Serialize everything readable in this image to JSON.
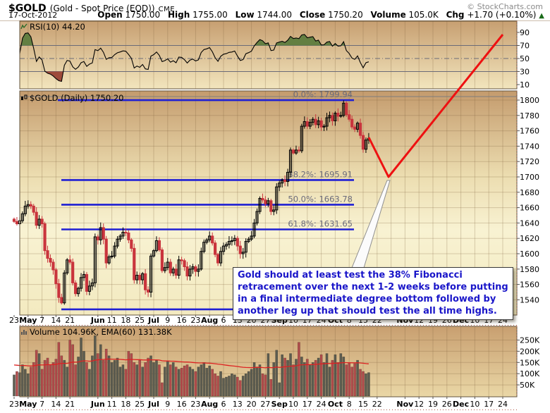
{
  "header": {
    "symbol": "$GOLD",
    "name": "(Gold - Spot Price (EOD))",
    "exchange": "CME",
    "copyright": "© StockCharts.com",
    "date": "17-Oct-2012",
    "quote": [
      {
        "label": "Open",
        "value": "1750.00"
      },
      {
        "label": "High",
        "value": "1755.00"
      },
      {
        "label": "Low",
        "value": "1744.00"
      },
      {
        "label": "Close",
        "value": "1750.20"
      },
      {
        "label": "Volume",
        "value": "105.0K"
      },
      {
        "label": "Chg",
        "value": "+1.70 (+0.10%)"
      }
    ],
    "chg_direction": "up"
  },
  "panels": {
    "rsi": {
      "label": "RSI(10) 44.20",
      "scale_values": [
        90,
        70,
        50,
        30,
        10
      ]
    },
    "main": {
      "label": "$GOLD (Daily) 1750.20",
      "scale_values": [
        1800,
        1780,
        1760,
        1740,
        1720,
        1700,
        1680,
        1660,
        1640,
        1620,
        1600,
        1580,
        1560,
        1540
      ],
      "fib_levels": [
        {
          "label": "0.0%: 1799.94",
          "price": 1799.94
        },
        {
          "label": "38.2%: 1695.91",
          "price": 1695.91
        },
        {
          "label": "50.0%: 1663.78",
          "price": 1663.78
        },
        {
          "label": "61.8%: 1631.65",
          "price": 1631.65
        },
        {
          "label": "",
          "price": 1527.61
        }
      ]
    },
    "volume": {
      "label": "Volume 104.96K, EMA(60) 131.38K",
      "scale_values": [
        250,
        200,
        150,
        100,
        50
      ]
    }
  },
  "x_axis_labels": [
    "23",
    "May",
    "7",
    "14",
    "21",
    "",
    "Jun",
    "11",
    "18",
    "25",
    "Jul",
    "9",
    "16",
    "23",
    "Aug",
    "6",
    "13",
    "20",
    "27",
    "Sep",
    "10",
    "17",
    "24",
    "Oct",
    "8",
    "15",
    "22",
    "",
    "Nov",
    "12",
    "19",
    "26",
    "Dec",
    "10",
    "17",
    "24"
  ],
  "annotation": {
    "lines": [
      "Gold should at least test the 38% Fibonacci",
      "retracement over the next 1-2 weeks before putting",
      "in a final intermediate degree bottom followed by",
      "another leg up that should test the all time highs."
    ]
  },
  "colors": {
    "fib_blue": "#1f1fd4",
    "projection_red": "#ee1111",
    "candle_red": "#c9353d",
    "candle_up_stroke": "#000000",
    "volume_gray": "#5c5c50",
    "volume_red": "#b14b4b",
    "ema_red": "#dd2222",
    "rsi_line": "#000000",
    "rsi_fill_high": "#637f42",
    "rsi_fill_low": "#9e4a3a",
    "fib_label_gray": "#6b6b7b",
    "annotation_text": "#1a16c9",
    "grid": "rgba(125,98,60,0.28)",
    "panel_border": "#63543f"
  },
  "chart_data": [
    {
      "type": "line",
      "title": "RSI(10)",
      "last_value": 44.2,
      "ylim": [
        0,
        100
      ],
      "ticks": [
        90,
        70,
        50,
        30,
        10
      ],
      "overbought_level": 70,
      "oversold_level": 30,
      "midline": 50,
      "note": "black RSI curve, shaded dark-green above 70 (late Aug-Sep) and dark-red below 30 (mid May); values derived from closes series"
    },
    {
      "type": "candlestick",
      "title": "$GOLD Daily, Apr 23 - Oct 17 2012, weekdays",
      "ylim": [
        1522,
        1812
      ],
      "last_close": 1750.2,
      "closes": [
        1642,
        1639,
        1643,
        1652,
        1662,
        1664,
        1662,
        1654,
        1637,
        1645,
        1639,
        1604,
        1594,
        1589,
        1579,
        1561,
        1543,
        1536,
        1575,
        1592,
        1589,
        1562,
        1548,
        1555,
        1569,
        1573,
        1551,
        1558,
        1562,
        1622,
        1618,
        1634,
        1619,
        1588,
        1596,
        1597,
        1610,
        1619,
        1623,
        1628,
        1627,
        1618,
        1607,
        1566,
        1572,
        1566,
        1574,
        1553,
        1550,
        1597,
        1604,
        1617,
        1605,
        1578,
        1582,
        1589,
        1575,
        1580,
        1572,
        1592,
        1591,
        1583,
        1571,
        1580,
        1583,
        1577,
        1580,
        1603,
        1615,
        1618,
        1623,
        1614,
        1599,
        1588,
        1603,
        1610,
        1612,
        1616,
        1617,
        1620,
        1610,
        1600,
        1602,
        1616,
        1619,
        1623,
        1640,
        1655,
        1672,
        1670,
        1665,
        1669,
        1655,
        1657,
        1687,
        1692,
        1696,
        1694,
        1706,
        1735,
        1731,
        1735,
        1734,
        1766,
        1772,
        1766,
        1771,
        1775,
        1768,
        1773,
        1765,
        1766,
        1777,
        1780,
        1773,
        1783,
        1779,
        1780,
        1796,
        1781,
        1775,
        1765,
        1762,
        1770,
        1754,
        1736,
        1748,
        1750.2
      ],
      "fib_retracement": {
        "high": 1799.94,
        "levels": {
          "0.0%": 1799.94,
          "38.2%": 1695.91,
          "50.0%": 1663.78,
          "61.8%": 1631.65,
          "100%": 1527.61
        }
      },
      "projection": {
        "description": "red annotation line: decline from last candle (~1753, Oct 17) to ~1700 at the 38.2% level (~Oct 24), then straight rally exiting the top of the price panel and ending near RSI-panel value ~87 around mid-December",
        "prices": [
          1753,
          1700
        ],
        "target_note": "test all time highs"
      }
    },
    {
      "type": "bar",
      "title": "Volume (thousands)",
      "ylim": [
        0,
        300
      ],
      "ticks_k": [
        250,
        200,
        150,
        100,
        50
      ],
      "last_volume_k": 105.0,
      "ema60_last_k": 131.38,
      "values_k": [
        95,
        110,
        105,
        140,
        120,
        100,
        130,
        150,
        205,
        190,
        120,
        160,
        170,
        140,
        150,
        165,
        240,
        180,
        160,
        130,
        250,
        230,
        140,
        175,
        260,
        200,
        150,
        120,
        180,
        270,
        190,
        230,
        160,
        210,
        180,
        150,
        160,
        170,
        130,
        140,
        120,
        200,
        190,
        150,
        140,
        160,
        130,
        150,
        170,
        180,
        150,
        160,
        140,
        60,
        130,
        155,
        140,
        150,
        130,
        120,
        125,
        135,
        140,
        130,
        120,
        110,
        130,
        140,
        150,
        125,
        135,
        120,
        100,
        90,
        110,
        80,
        85,
        90,
        100,
        95,
        85,
        70,
        90,
        100,
        110,
        120,
        150,
        130,
        140,
        100,
        95,
        190,
        75,
        150,
        205,
        60,
        185,
        170,
        160,
        190,
        140,
        165,
        240,
        175,
        150,
        165,
        140,
        150,
        160,
        170,
        185,
        150,
        190,
        130,
        160,
        185,
        150,
        190,
        175,
        140,
        150,
        130,
        145,
        160,
        120,
        110,
        100,
        105
      ]
    }
  ]
}
